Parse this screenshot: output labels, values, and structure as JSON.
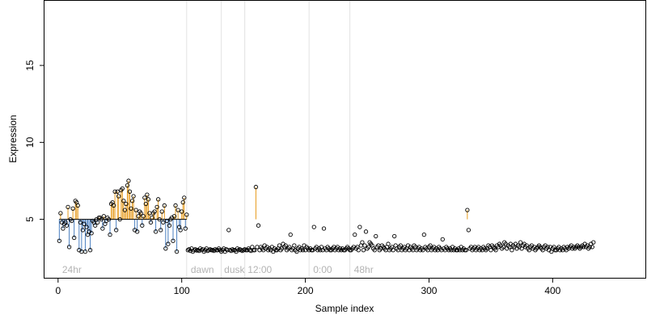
{
  "chart_data": {
    "type": "scatter",
    "xlabel": "Sample index",
    "ylabel": "Expression",
    "xlim": [
      -11,
      475
    ],
    "ylim": [
      1.2,
      19.2
    ],
    "xticks": [
      0,
      100,
      200,
      300,
      400
    ],
    "yticks": [
      5,
      10,
      15
    ],
    "baseline": 5,
    "colors": {
      "above": "#e69a1c",
      "below": "#4a7fc0",
      "separator": "#e2e2e2",
      "group_label": "#b3b3b3"
    },
    "separators": [
      104,
      132,
      151,
      203,
      236
    ],
    "groups": [
      {
        "label": "24hr",
        "x": 2
      },
      {
        "label": "dawn",
        "x": 106
      },
      {
        "label": "dusk",
        "x": 133
      },
      {
        "label": "12:00",
        "x": 152
      },
      {
        "label": "0:00",
        "x": 205
      },
      {
        "label": "48hr",
        "x": 238
      }
    ],
    "series": [
      {
        "x0": 1,
        "values": [
          3.6,
          5.4,
          4.8,
          4.4,
          4.7,
          4.8,
          4.6,
          5.8,
          3.2,
          5.0,
          4.9,
          5.7,
          3.8,
          6.2,
          6.1,
          5.9,
          3.0,
          4.8,
          2.9,
          4.3,
          4.7,
          2.9,
          4.5,
          4.0,
          4.2,
          3.0,
          4.1,
          4.9,
          4.8,
          4.6,
          5.0,
          4.8,
          5.1,
          5.1,
          5.0,
          4.4,
          5.2,
          4.7,
          4.9,
          5.1,
          5.0,
          4.0,
          6.0,
          6.1,
          5.9,
          6.8,
          4.3,
          6.8,
          6.5,
          5.0,
          6.9,
          7.0,
          6.2,
          5.6,
          6.0,
          7.2,
          7.5,
          6.8,
          5.7,
          6.2,
          6.5,
          4.3,
          5.6,
          4.2,
          5.2,
          5.5,
          5.4,
          4.6,
          5.2,
          6.4,
          6.0,
          6.6,
          6.3,
          5.4,
          4.8,
          5.1,
          5.4,
          5.5,
          4.2,
          5.8,
          6.3,
          5.0,
          4.3,
          5.5,
          4.8,
          5.9,
          3.1,
          4.9,
          3.4,
          4.6,
          5.0,
          5.1,
          3.6,
          5.2,
          5.9,
          2.9,
          5.6,
          4.5,
          4.3,
          5.5,
          6.1,
          6.4,
          4.4,
          5.3,
          3.0,
          3.05,
          2.95,
          3.1,
          2.9,
          3.0,
          3.05,
          2.98,
          3.0,
          2.95,
          3.1,
          3.0,
          3.05,
          2.9,
          3.0,
          3.1,
          2.95,
          3.0,
          3.05,
          3.0,
          3.0,
          2.95,
          3.05,
          3.0,
          3.0,
          3.1,
          3.0,
          2.9,
          3.0,
          3.1,
          2.9,
          3.05,
          3.0,
          4.3,
          3.0,
          2.95,
          3.05,
          3.0,
          3.0,
          2.9,
          3.1,
          3.0,
          3.05,
          3.0,
          2.95,
          3.0,
          3.05,
          3.0,
          3.0,
          3.1,
          3.0,
          2.95,
          3.2,
          3.0,
          3.0,
          7.1,
          3.2,
          4.6,
          3.0,
          3.2,
          3.1,
          3.0,
          3.3,
          3.1,
          3.2,
          3.0,
          3.1,
          3.0,
          3.2,
          2.9,
          3.1,
          3.0,
          3.0,
          3.1,
          3.3,
          3.0,
          3.1,
          3.4,
          3.2,
          3.3,
          3.0,
          3.1,
          3.2,
          4.0,
          3.0,
          3.1,
          3.3,
          3.0,
          2.9,
          3.1,
          3.2,
          3.0,
          3.1,
          3.0,
          3.3,
          3.0,
          3.2,
          3.1,
          3.0,
          3.1,
          3.0,
          3.0,
          4.5,
          3.1,
          3.2,
          3.0,
          3.1,
          3.0,
          3.2,
          3.0,
          4.4,
          3.1,
          3.0,
          3.2,
          3.1,
          3.0,
          3.0,
          3.1,
          3.2,
          3.0,
          3.1,
          3.2,
          3.0,
          3.1,
          3.0,
          3.1,
          3.0,
          3.0,
          3.1,
          3.2,
          3.1,
          3.0,
          3.0,
          3.1,
          3.2,
          4.0,
          3.1,
          3.2,
          3.0,
          4.5,
          3.3,
          3.5,
          3.0,
          3.3,
          4.2,
          3.1,
          3.2,
          3.5,
          3.4,
          3.3,
          3.1,
          3.0,
          3.9,
          3.2,
          3.3,
          3.0,
          3.1,
          3.3,
          3.2,
          3.1,
          3.0,
          3.2,
          3.4,
          3.0,
          3.1,
          3.2,
          3.0,
          3.9,
          3.3,
          3.1,
          3.0,
          3.2,
          3.3,
          3.0,
          3.1,
          3.2,
          3.0,
          3.1,
          3.3,
          3.0,
          3.2,
          3.1,
          3.0,
          3.3,
          3.2,
          3.0,
          3.1,
          3.2,
          3.0,
          3.1,
          3.0,
          4.0,
          3.2,
          3.1,
          3.0,
          3.2,
          3.3,
          3.0,
          3.1,
          3.2,
          3.0,
          3.1,
          3.0,
          3.2,
          3.1,
          3.0,
          3.7,
          3.1,
          3.0,
          3.2,
          3.1,
          3.0,
          3.1,
          3.0,
          3.2,
          3.0,
          3.1,
          3.0,
          3.0,
          3.1,
          3.0,
          3.2,
          3.0,
          3.1,
          3.0,
          3.0,
          5.6,
          4.3,
          3.1,
          3.2,
          3.0,
          3.1,
          3.2,
          3.0,
          3.1,
          3.2,
          3.0,
          3.1,
          3.0,
          3.2,
          3.1,
          3.0,
          3.1,
          3.3,
          3.2,
          3.0,
          3.3,
          3.2,
          3.1,
          3.0,
          3.3,
          3.2,
          3.4,
          3.3,
          3.1,
          3.2,
          3.5,
          3.4,
          3.1,
          3.3,
          3.2,
          3.4,
          3.0,
          3.3,
          3.2,
          3.4,
          3.1,
          3.3,
          3.2,
          3.5,
          3.1,
          3.3,
          3.4,
          3.2,
          3.3,
          3.1,
          3.0,
          3.2,
          3.3,
          3.1,
          3.2,
          3.0,
          3.1,
          3.2,
          3.3,
          3.2,
          3.1,
          3.0,
          3.2,
          3.3,
          3.1,
          3.2,
          3.0,
          3.2,
          2.9,
          3.1,
          3.2,
          3.0,
          3.0,
          3.1,
          3.2,
          3.0,
          3.1,
          3.0,
          3.2,
          3.1,
          3.0,
          3.2,
          3.1,
          3.2,
          3.3,
          3.1,
          3.2,
          3.1,
          3.2,
          3.3,
          3.2,
          3.1,
          3.2,
          3.3,
          3.2,
          3.4,
          3.2,
          3.3,
          3.1,
          3.2,
          3.4,
          3.2,
          3.5
        ]
      }
    ]
  }
}
